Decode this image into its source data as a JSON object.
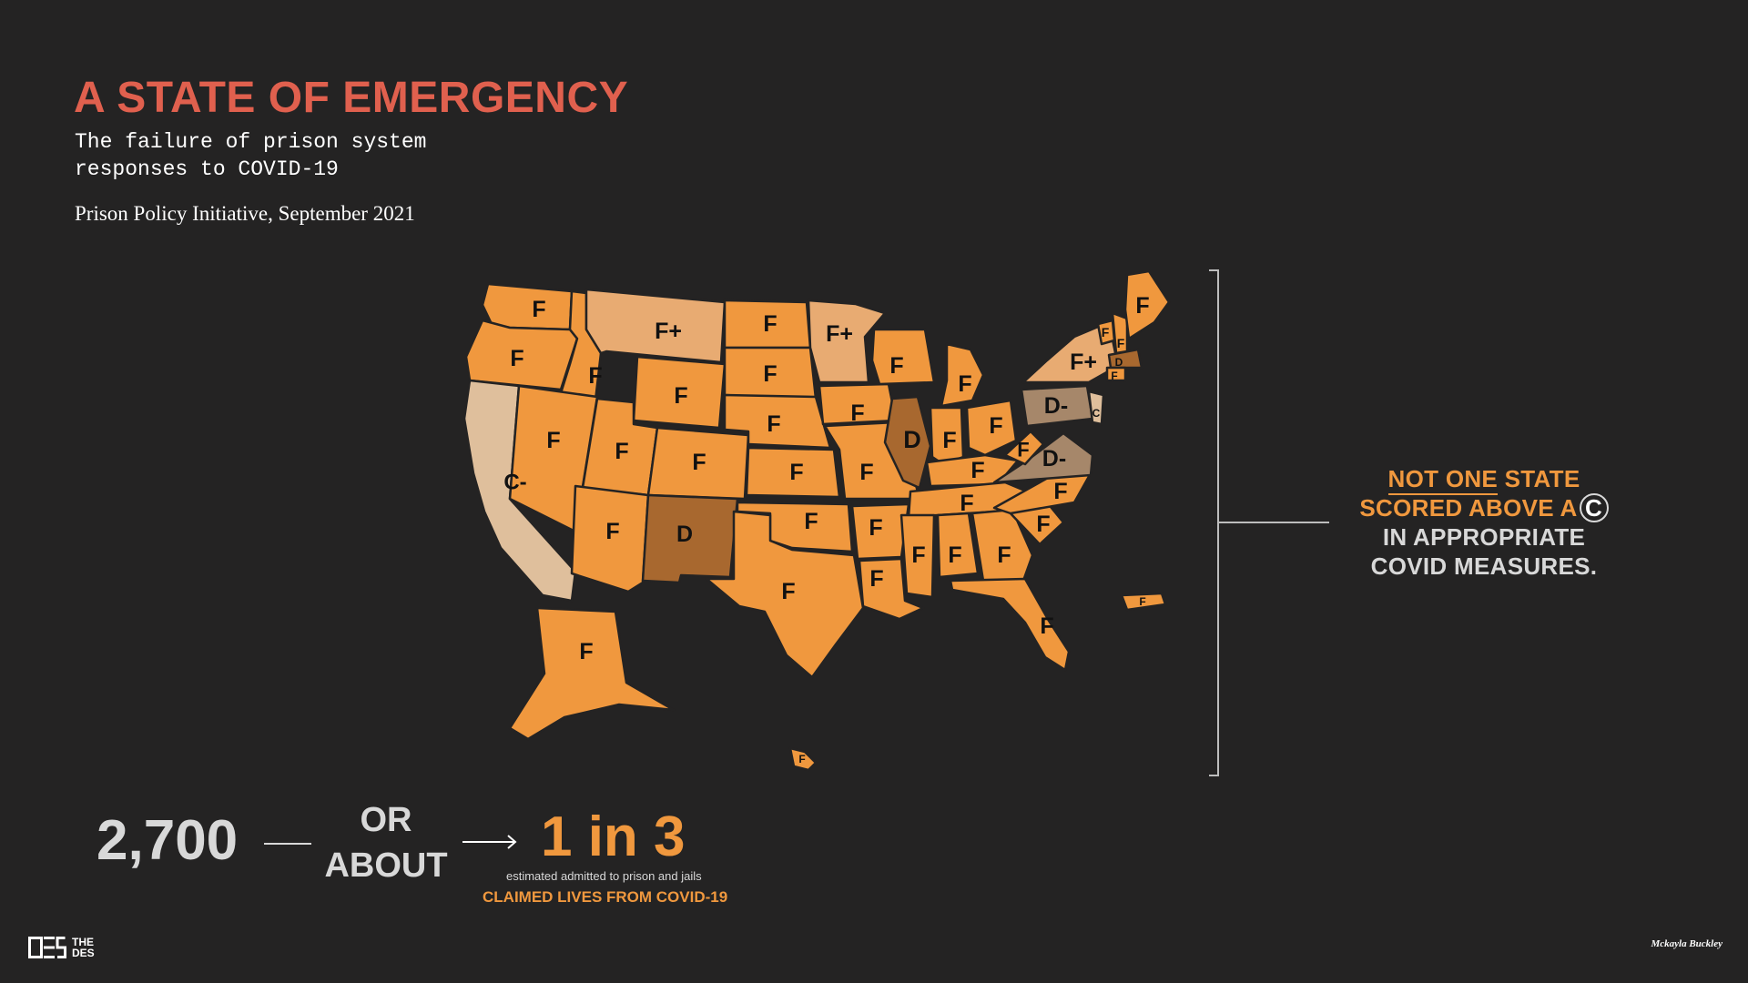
{
  "header": {
    "title": "A STATE OF EMERGENCY",
    "subtitle": "The failure of prison system responses to COVID-19",
    "source": "Prison Policy Initiative, September 2021"
  },
  "legend_colors": {
    "F": "#f0983e",
    "F+": "#e8ab72",
    "D-": "#a6876a",
    "D": "#a8682f",
    "C-": "#dfbf9c",
    "C": "#dfbf9c"
  },
  "states": [
    {
      "id": "WA",
      "grade": "F"
    },
    {
      "id": "OR",
      "grade": "F"
    },
    {
      "id": "CA",
      "grade": "C-"
    },
    {
      "id": "ID",
      "grade": "F"
    },
    {
      "id": "NV",
      "grade": "F"
    },
    {
      "id": "MT",
      "grade": "F+"
    },
    {
      "id": "WY",
      "grade": "F"
    },
    {
      "id": "UT",
      "grade": "F"
    },
    {
      "id": "AZ",
      "grade": "F"
    },
    {
      "id": "CO",
      "grade": "F"
    },
    {
      "id": "NM",
      "grade": "D"
    },
    {
      "id": "ND",
      "grade": "F"
    },
    {
      "id": "SD",
      "grade": "F"
    },
    {
      "id": "NE",
      "grade": "F"
    },
    {
      "id": "KS",
      "grade": "F"
    },
    {
      "id": "OK",
      "grade": "F"
    },
    {
      "id": "TX",
      "grade": "F"
    },
    {
      "id": "MN",
      "grade": "F+"
    },
    {
      "id": "IA",
      "grade": "F"
    },
    {
      "id": "MO",
      "grade": "F"
    },
    {
      "id": "AR",
      "grade": "F"
    },
    {
      "id": "LA",
      "grade": "F"
    },
    {
      "id": "WI",
      "grade": "F"
    },
    {
      "id": "IL",
      "grade": "D"
    },
    {
      "id": "MI",
      "grade": "F"
    },
    {
      "id": "IN",
      "grade": "F"
    },
    {
      "id": "OH",
      "grade": "F"
    },
    {
      "id": "KY",
      "grade": "F"
    },
    {
      "id": "TN",
      "grade": "F"
    },
    {
      "id": "MS",
      "grade": "F"
    },
    {
      "id": "AL",
      "grade": "F"
    },
    {
      "id": "GA",
      "grade": "F"
    },
    {
      "id": "FL",
      "grade": "F"
    },
    {
      "id": "SC",
      "grade": "F"
    },
    {
      "id": "NC",
      "grade": "F"
    },
    {
      "id": "VA",
      "grade": "D-"
    },
    {
      "id": "WV",
      "grade": "F"
    },
    {
      "id": "PA",
      "grade": "D-"
    },
    {
      "id": "NY",
      "grade": "F+"
    },
    {
      "id": "NJ",
      "grade": "C"
    },
    {
      "id": "VT",
      "grade": "F"
    },
    {
      "id": "NH",
      "grade": "F"
    },
    {
      "id": "ME",
      "grade": "F"
    },
    {
      "id": "MA",
      "grade": "D"
    },
    {
      "id": "CT",
      "grade": "F"
    },
    {
      "id": "AK",
      "grade": "F"
    },
    {
      "id": "HI",
      "grade": "F"
    },
    {
      "id": "PR",
      "grade": "F"
    }
  ],
  "callout": {
    "line1_underlined": "NOT ONE",
    "line1_rest": " STATE",
    "line2_prefix": "SCORED ABOVE A",
    "line2_grade": "C",
    "line3": "IN APPROPRIATE",
    "line4": "COVID MEASURES."
  },
  "stats": {
    "count": "2,700",
    "connector": "OR ABOUT",
    "ratio": "1 in 3",
    "ratio_note": "estimated admitted to prison and jails",
    "claim": "CLAIMED LIVES FROM COVID-19"
  },
  "footer": {
    "logo_text_top": "THE",
    "logo_text_bottom": "DES",
    "credit": "Mckayla Buckley"
  }
}
